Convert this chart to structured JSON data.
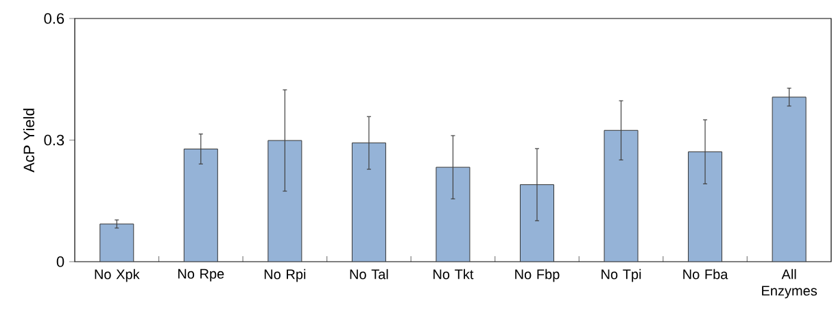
{
  "chart_data": {
    "type": "bar",
    "ylabel": "AcP Yield",
    "categories": [
      "No Xpk",
      "No Rpe",
      "No Rpi",
      "No Tal",
      "No Tkt",
      "No Fbp",
      "No Tpi",
      "No Fba",
      "All Enzymes"
    ],
    "values": [
      0.093,
      0.278,
      0.299,
      0.293,
      0.233,
      0.19,
      0.324,
      0.271,
      0.406
    ],
    "errors": [
      0.01,
      0.037,
      0.125,
      0.065,
      0.078,
      0.089,
      0.073,
      0.079,
      0.022
    ],
    "color": "#95b3d7",
    "ylim": [
      0,
      0.6
    ],
    "yticks": [
      0,
      0.3,
      0.6
    ]
  }
}
